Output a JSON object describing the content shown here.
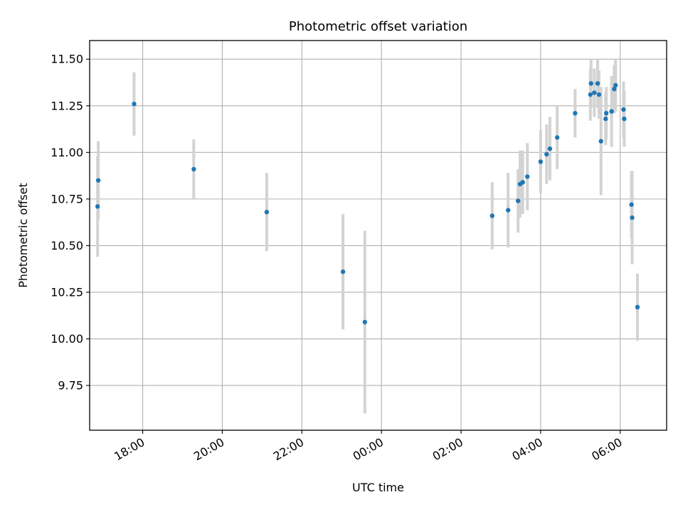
{
  "chart_data": {
    "type": "scatter",
    "title": "Photometric offset variation",
    "xlabel": "UTC time",
    "ylabel": "Photometric offset",
    "x_is_time": true,
    "xlim": [
      "16:40",
      "07:10"
    ],
    "ylim": [
      9.51,
      11.6
    ],
    "x_ticks": [
      "18:00",
      "20:00",
      "22:00",
      "00:00",
      "02:00",
      "04:00",
      "06:00"
    ],
    "y_ticks": [
      "9.75",
      "10.00",
      "10.25",
      "10.50",
      "10.75",
      "11.00",
      "11.25",
      "11.50"
    ],
    "grid": true,
    "colors": {
      "point": "#1f77b4",
      "error_bar": "#d3d3d3",
      "grid": "#b0b0b0"
    },
    "points": [
      {
        "x": "16:52",
        "y": 10.71,
        "err": 0.27
      },
      {
        "x": "16:53",
        "y": 10.85,
        "err": 0.21
      },
      {
        "x": "17:47",
        "y": 11.26,
        "err": 0.17
      },
      {
        "x": "19:17",
        "y": 10.91,
        "err": 0.16
      },
      {
        "x": "21:07",
        "y": 10.68,
        "err": 0.21
      },
      {
        "x": "23:02",
        "y": 10.36,
        "err": 0.31
      },
      {
        "x": "23:35",
        "y": 10.09,
        "err": 0.49
      },
      {
        "x": "02:47",
        "y": 10.66,
        "err": 0.18
      },
      {
        "x": "03:11",
        "y": 10.69,
        "err": 0.2
      },
      {
        "x": "03:26",
        "y": 10.74,
        "err": 0.17
      },
      {
        "x": "03:29",
        "y": 10.83,
        "err": 0.18
      },
      {
        "x": "03:33",
        "y": 10.84,
        "err": 0.17
      },
      {
        "x": "03:40",
        "y": 10.87,
        "err": 0.18
      },
      {
        "x": "04:00",
        "y": 10.95,
        "err": 0.17
      },
      {
        "x": "04:09",
        "y": 10.99,
        "err": 0.16
      },
      {
        "x": "04:14",
        "y": 11.02,
        "err": 0.17
      },
      {
        "x": "04:25",
        "y": 11.08,
        "err": 0.17
      },
      {
        "x": "04:52",
        "y": 11.21,
        "err": 0.13
      },
      {
        "x": "05:15",
        "y": 11.31,
        "err": 0.14
      },
      {
        "x": "05:16",
        "y": 11.37,
        "err": 0.13
      },
      {
        "x": "05:21",
        "y": 11.32,
        "err": 0.13
      },
      {
        "x": "05:26",
        "y": 11.37,
        "err": 0.13
      },
      {
        "x": "05:28",
        "y": 11.31,
        "err": 0.13
      },
      {
        "x": "05:31",
        "y": 11.06,
        "err": 0.29
      },
      {
        "x": "05:38",
        "y": 11.18,
        "err": 0.14
      },
      {
        "x": "05:39",
        "y": 11.21,
        "err": 0.14
      },
      {
        "x": "05:47",
        "y": 11.22,
        "err": 0.19
      },
      {
        "x": "05:51",
        "y": 11.34,
        "err": 0.13
      },
      {
        "x": "05:53",
        "y": 11.36,
        "err": 0.14
      },
      {
        "x": "06:05",
        "y": 11.23,
        "err": 0.15
      },
      {
        "x": "06:06",
        "y": 11.18,
        "err": 0.15
      },
      {
        "x": "06:17",
        "y": 10.72,
        "err": 0.18
      },
      {
        "x": "06:18",
        "y": 10.65,
        "err": 0.25
      },
      {
        "x": "06:26",
        "y": 10.17,
        "err": 0.18
      }
    ]
  }
}
